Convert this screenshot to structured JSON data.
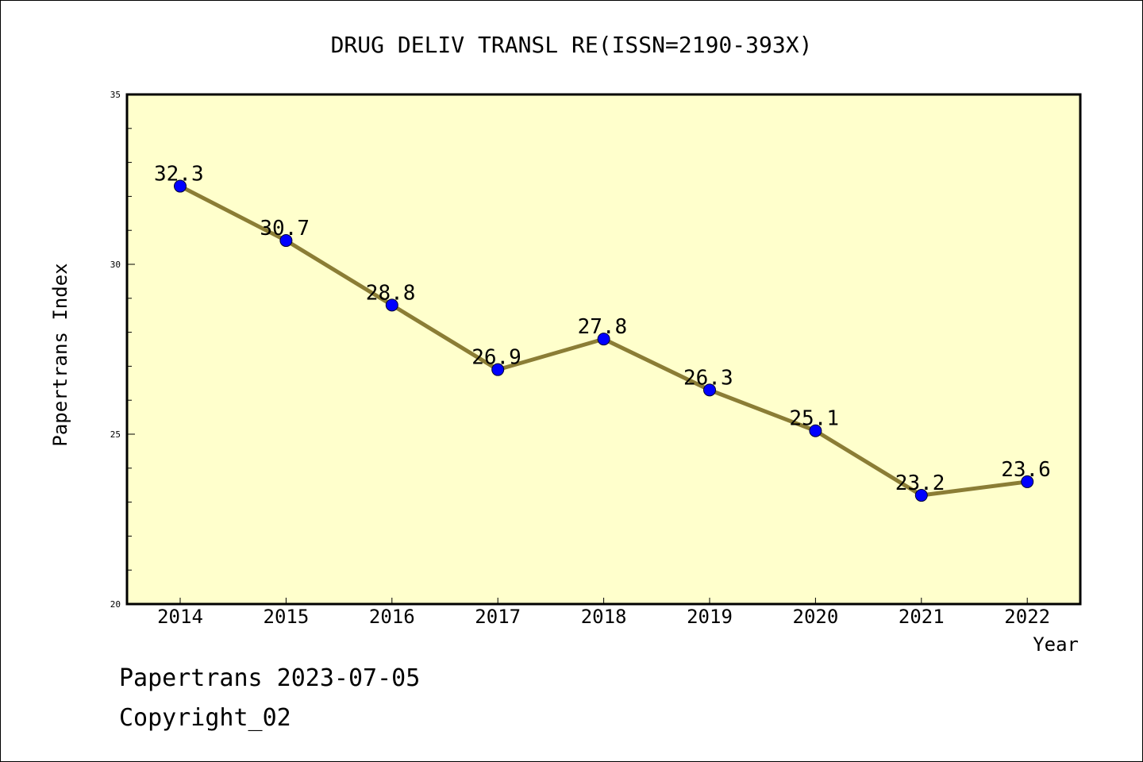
{
  "chart_data": {
    "type": "line",
    "title": "DRUG DELIV TRANSL RE(ISSN=2190-393X)",
    "xlabel": "Year",
    "ylabel": "Papertrans Index",
    "x": [
      "2014",
      "2015",
      "2016",
      "2017",
      "2018",
      "2019",
      "2020",
      "2021",
      "2022"
    ],
    "values": [
      32.3,
      30.7,
      28.8,
      26.9,
      27.8,
      26.3,
      25.1,
      23.2,
      23.6
    ],
    "data_labels": [
      "32.3",
      "30.7",
      "28.8",
      "26.9",
      "27.8",
      "26.3",
      "25.1",
      "23.2",
      "23.6"
    ],
    "ylim": [
      20,
      35
    ],
    "y_ticks": [
      "20",
      "25",
      "30",
      "35"
    ],
    "grid": false,
    "legend": "none"
  },
  "footer": {
    "date_line": "Papertrans 2023-07-05",
    "copyright_line": "Copyright_02"
  },
  "colors": {
    "plot_background": "#ffffcc",
    "line": "#8b7d35",
    "marker": "#0000ff",
    "axis": "#000000"
  }
}
